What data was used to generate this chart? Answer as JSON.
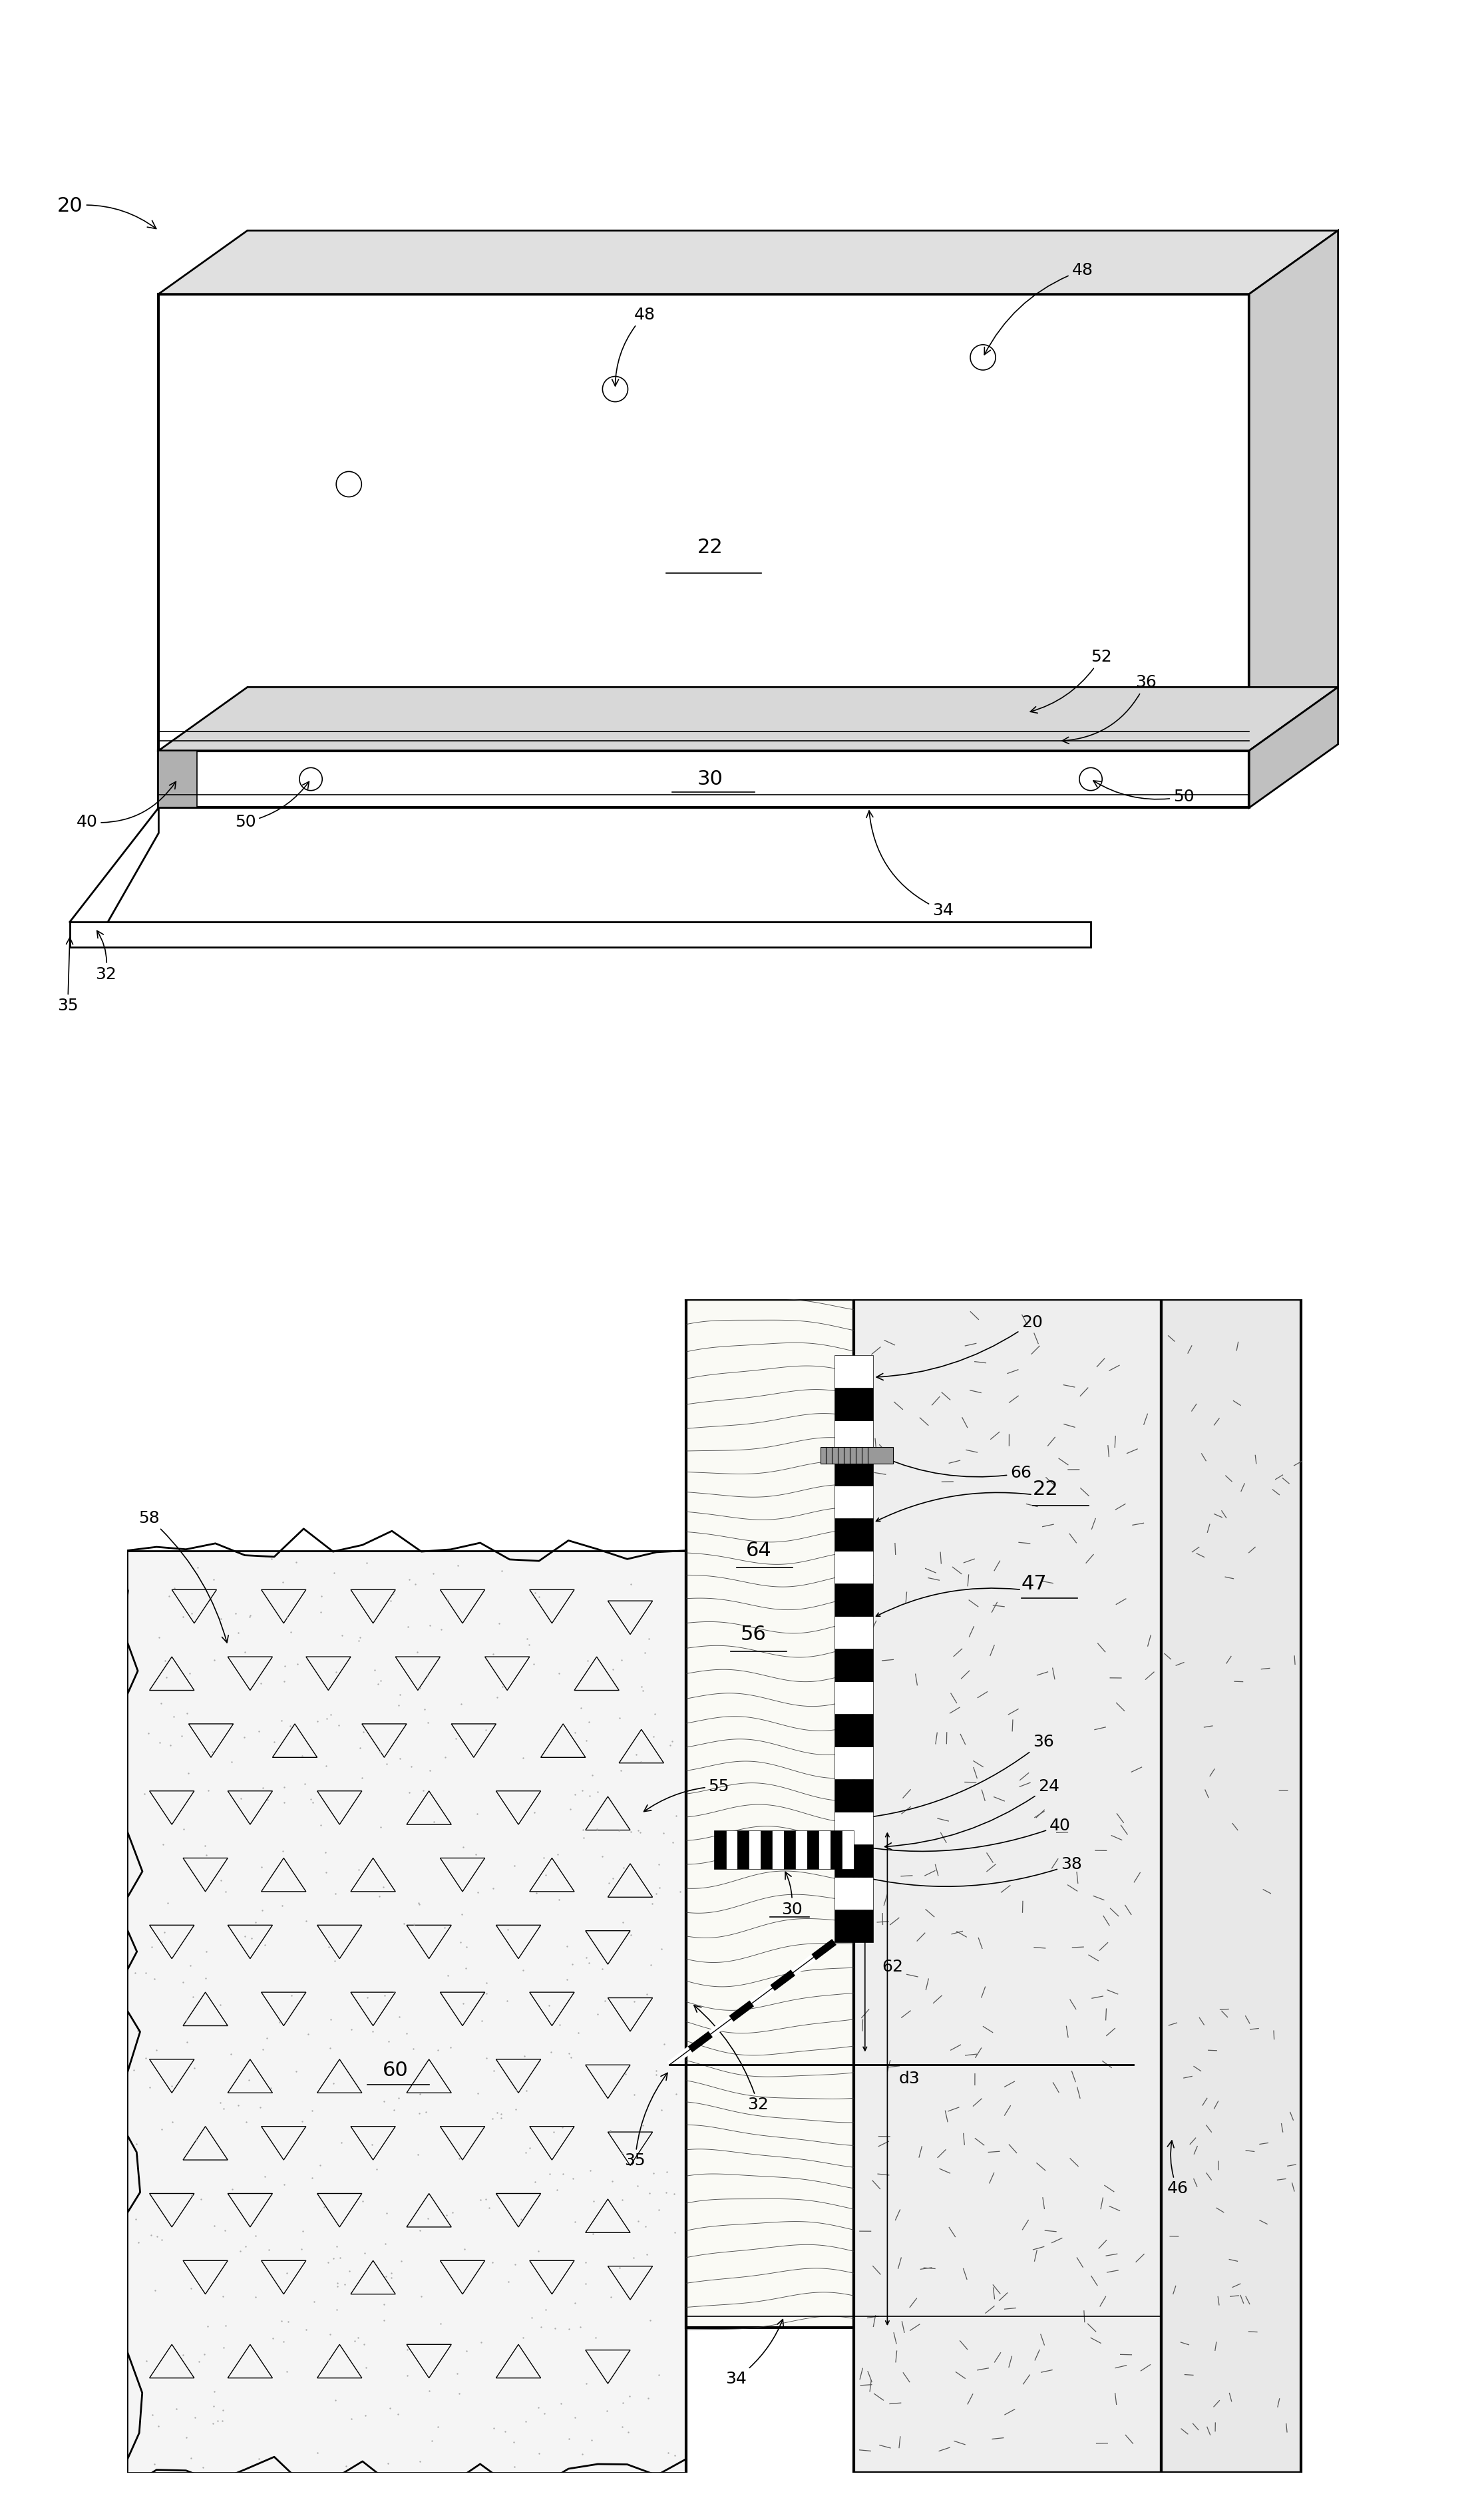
{
  "fig_width": 22.3,
  "fig_height": 37.53,
  "bg_color": "#ffffff",
  "line_color": "#000000",
  "lw_main": 2.0,
  "lw_thin": 1.2,
  "lw_thick": 3.0,
  "fs_ann": 18,
  "fs_lbl": 22
}
